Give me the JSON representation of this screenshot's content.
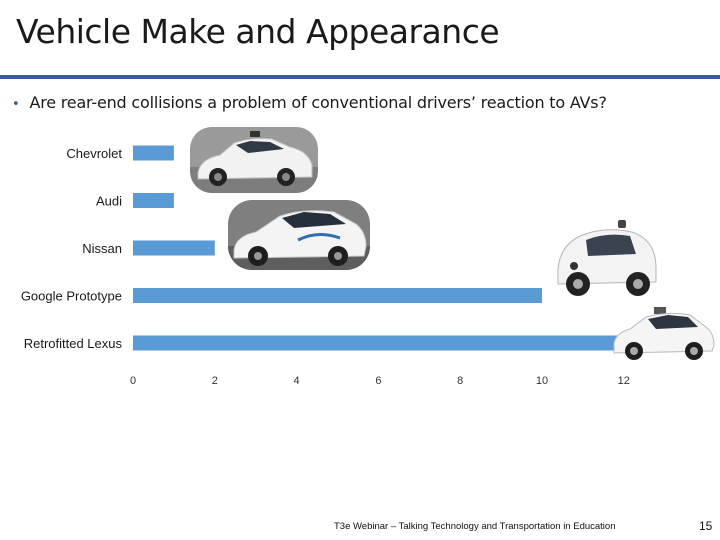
{
  "slide": {
    "title": "Vehicle Make and Appearance",
    "bullet": "Are rear-end collisions a problem of conventional drivers’ reaction to AVs?",
    "footer": "T3e Webinar – Talking Technology and Transportation in Education",
    "page_number": "15",
    "accent_color": "#3a5a9e"
  },
  "chart_data": {
    "type": "bar",
    "orientation": "horizontal",
    "categories": [
      "Chevrolet",
      "Audi",
      "Nissan",
      "Google Prototype",
      "Retrofitted Lexus"
    ],
    "values": [
      1,
      1,
      2,
      10,
      12
    ],
    "xlim": [
      0,
      12
    ],
    "xticks": [
      "0",
      "2",
      "4",
      "6",
      "8",
      "10",
      "12"
    ],
    "bar_color": "#5b9bd5",
    "grid": false
  },
  "images": [
    {
      "name": "chevrolet-bolt-photo",
      "depicts": "Chevrolet Bolt autonomous test car"
    },
    {
      "name": "nissan-leaf-photo",
      "depicts": "Nissan Leaf autonomous drive car"
    },
    {
      "name": "google-prototype-photo",
      "depicts": "Google self-driving prototype"
    },
    {
      "name": "lexus-photo",
      "depicts": "Retrofitted Lexus SUV with roof sensor"
    }
  ]
}
